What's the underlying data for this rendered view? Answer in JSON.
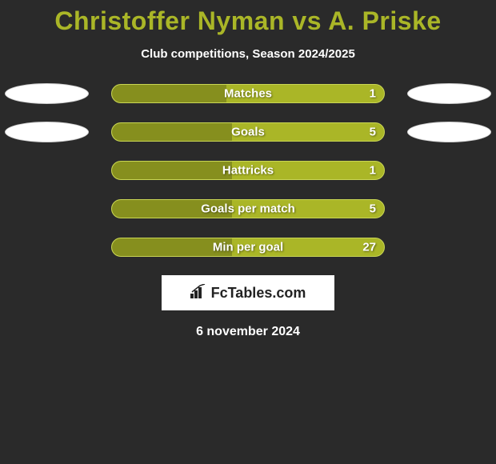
{
  "title": "Christoffer Nyman vs A. Priske",
  "subtitle": "Club competitions, Season 2024/2025",
  "date": "6 november 2024",
  "logo_text": "FcTables.com",
  "colors": {
    "background": "#2a2a2a",
    "accent": "#aab627",
    "bar_outer": "#aab627",
    "bar_fill": "#868f1e",
    "text_light": "#ffffff",
    "oval_fill": "#ffffff",
    "oval_border": "#d0d0d0"
  },
  "oval_rows": [
    0,
    1
  ],
  "bars": [
    {
      "label": "Matches",
      "value": "1",
      "fill_pct": 42
    },
    {
      "label": "Goals",
      "value": "5",
      "fill_pct": 44
    },
    {
      "label": "Hattricks",
      "value": "1",
      "fill_pct": 44
    },
    {
      "label": "Goals per match",
      "value": "5",
      "fill_pct": 44
    },
    {
      "label": "Min per goal",
      "value": "27",
      "fill_pct": 44
    }
  ]
}
